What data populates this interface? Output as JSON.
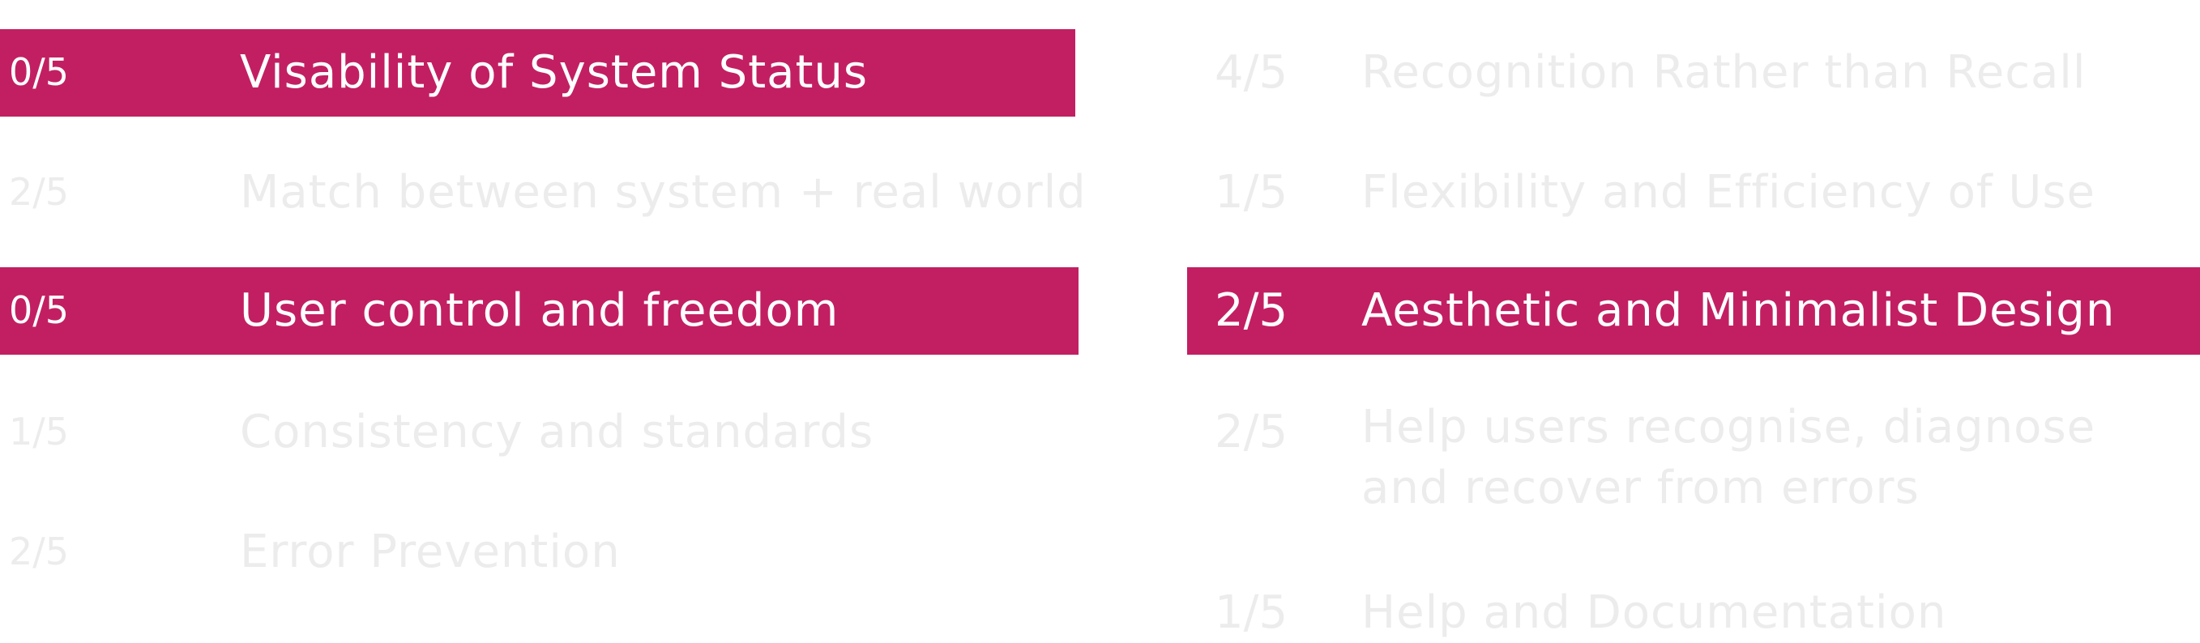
{
  "left_column": [
    {
      "score": "0/5",
      "label": "Visability of System Status",
      "highlighted": true
    },
    {
      "score": "2/5",
      "label": "Match between system + real world",
      "highlighted": false
    },
    {
      "score": "0/5",
      "label": "User control and freedom",
      "highlighted": true
    },
    {
      "score": "1/5",
      "label": "Consistency and standards",
      "highlighted": false
    },
    {
      "score": "2/5",
      "label": "Error Prevention",
      "highlighted": false
    }
  ],
  "right_column": [
    {
      "score": "4/5",
      "label": "Recognition Rather than Recall",
      "highlighted": false
    },
    {
      "score": "1/5",
      "label": "Flexibility and Efficiency of Use",
      "highlighted": false
    },
    {
      "score": "2/5",
      "label": "Aesthetic and Minimalist Design",
      "highlighted": true
    },
    {
      "score": "2/5",
      "label": "Help users recognise, diagnose and recover from errors",
      "highlighted": false
    },
    {
      "score": "1/5",
      "label": "Help and Documentation",
      "highlighted": false
    }
  ],
  "colors": {
    "highlight": "#c21f62",
    "highlight_text": "#ffffff",
    "muted_text": "#ececec"
  }
}
